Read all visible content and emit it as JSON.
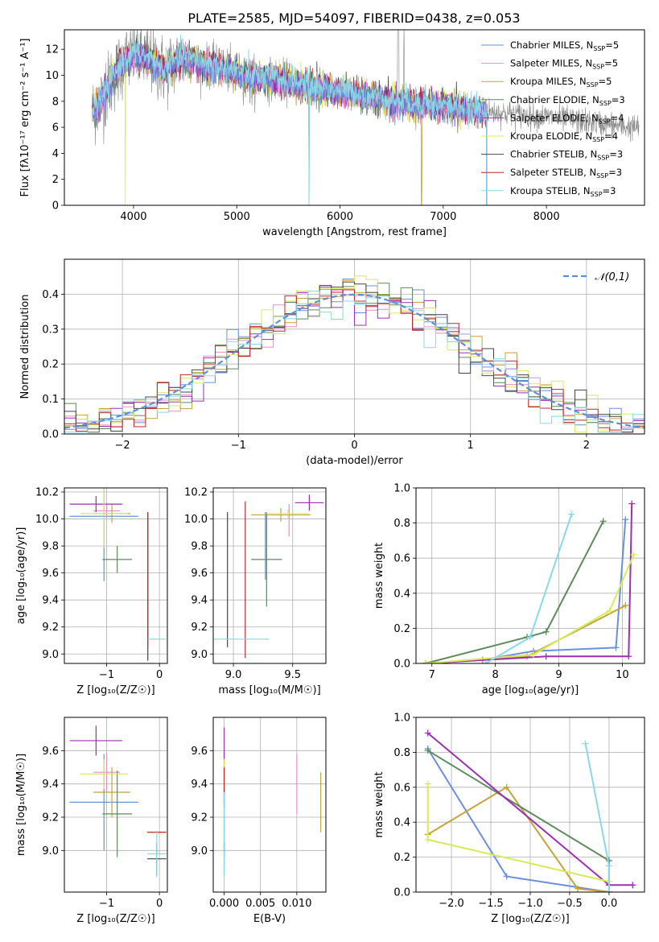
{
  "figure_title": "PLATE=2585, MJD=54097, FIBERID=0438, z=0.053",
  "model_colors": [
    "#6a8fdc",
    "#e58fc8",
    "#c2a43a",
    "#5e8a5e",
    "#9b30b0",
    "#d7ea5a",
    "#444444",
    "#c0282c",
    "#8ad8e6"
  ],
  "legend_models": [
    "Chabrier MILES",
    "Salpeter MILES",
    "Kroupa MILES",
    "Chabrier ELODIE",
    "Salpeter ELODIE",
    "Kroupa ELODIE",
    "Chabrier STELIB",
    "Salpeter STELIB",
    "Kroupa STELIB"
  ],
  "legend_nssp": [
    "5",
    "5",
    "5",
    "3",
    "4",
    "4",
    "3",
    "3",
    "3"
  ],
  "legend_nssp_prefix": "N",
  "legend_nssp_sub": "SSP",
  "hist_legend": "𝒩(0,1)",
  "chart_data": [
    {
      "id": "spectrum",
      "type": "line",
      "xlabel": "wavelength [Angstrom, rest frame]",
      "ylabel": "Flux [fλ10⁻¹⁷ erg cm⁻² s⁻¹ A⁻¹]",
      "xlim": [
        3330,
        8950
      ],
      "ylim": [
        0,
        13.5
      ],
      "xticks": [
        4000,
        5000,
        6000,
        7000,
        8000
      ],
      "yticks": [
        0,
        2,
        4,
        6,
        8,
        10,
        12
      ],
      "data_wavelength_range": [
        3600,
        8900
      ],
      "model_wavelength_range": [
        3600,
        7420
      ],
      "continuum_samples": {
        "x": [
          3600,
          3700,
          3800,
          3900,
          4000,
          4100,
          4200,
          4300,
          4400,
          4500,
          4700,
          4900,
          5100,
          5300,
          5500,
          5700,
          5900,
          6100,
          6300,
          6500,
          6700,
          6900,
          7100,
          7300,
          7420,
          7600,
          7800,
          8000,
          8200,
          8400,
          8600,
          8800,
          8900
        ],
        "y": [
          7.2,
          8.2,
          9.8,
          11.0,
          11.6,
          11.4,
          11.0,
          10.3,
          11.0,
          11.3,
          10.8,
          10.4,
          9.9,
          9.7,
          9.5,
          9.1,
          8.9,
          8.6,
          8.3,
          8.0,
          7.8,
          7.7,
          7.5,
          7.3,
          7.2,
          7.1,
          6.9,
          6.8,
          6.6,
          6.4,
          6.2,
          6.0,
          6.0
        ]
      },
      "model_dropouts": [
        3920,
        5700,
        6790,
        7420
      ]
    },
    {
      "id": "residual_histogram",
      "type": "bar",
      "xlabel": "(data-model)/error",
      "ylabel": "Normed distribution",
      "xlim": [
        -2.5,
        2.5
      ],
      "ylim": [
        0,
        0.5
      ],
      "xticks": [
        -2,
        -1,
        0,
        1,
        2
      ],
      "yticks": [
        0.0,
        0.1,
        0.2,
        0.3,
        0.4
      ],
      "bin_width": 0.1,
      "gaussian_mean": 0,
      "gaussian_sigma": 1
    },
    {
      "id": "age_vs_Z",
      "type": "scatter",
      "xlabel": "Z [log₁₀(Z/Z☉)]",
      "ylabel": "age  [log₁₀(age/yr)]",
      "xlim": [
        -1.8,
        0.15
      ],
      "ylim": [
        8.93,
        10.23
      ],
      "xticks": [
        -1,
        0
      ],
      "yticks": [
        9.0,
        9.2,
        9.4,
        9.6,
        9.8,
        10.0,
        10.2
      ],
      "points": [
        {
          "model": 0,
          "x": -1.05,
          "xerr": 0.65,
          "y": 10.02,
          "yerr": 0.48
        },
        {
          "model": 1,
          "x": -1.0,
          "xerr": 0.25,
          "y": 10.06,
          "yerr": 0.05
        },
        {
          "model": 2,
          "x": -0.9,
          "xerr": 0.35,
          "y": 10.04,
          "yerr": 0.07
        },
        {
          "model": 3,
          "x": -0.8,
          "xerr": 0.28,
          "y": 9.7,
          "yerr": 0.1
        },
        {
          "model": 4,
          "x": -1.2,
          "xerr": 0.5,
          "y": 10.11,
          "yerr": 0.06
        },
        {
          "model": 5,
          "x": -1.05,
          "xerr": 0.45,
          "y": 10.04,
          "yerr": 0.25
        },
        {
          "model": 6,
          "x": -0.22,
          "xerr": 0.0,
          "y": 9.5,
          "yerr": 0.55
        },
        {
          "model": 7,
          "x": -0.22,
          "xerr": 0.0,
          "y": 9.55,
          "yerr": 0.5
        },
        {
          "model": 8,
          "x": -0.05,
          "xerr": 0.17,
          "y": 9.11,
          "yerr": 0.0
        }
      ]
    },
    {
      "id": "age_vs_mass",
      "type": "scatter",
      "xlabel": "mass [log₁₀(M/M☉)]",
      "ylabel": "",
      "xlim": [
        8.83,
        9.78
      ],
      "ylim": [
        8.93,
        10.23
      ],
      "xticks": [
        9.0,
        9.5
      ],
      "yticks": [
        9.0,
        9.2,
        9.4,
        9.6,
        9.8,
        10.0,
        10.2
      ],
      "points": [
        {
          "model": 0,
          "x": 9.27,
          "xerr": 0.0,
          "y": 9.8,
          "yerr": 0.25
        },
        {
          "model": 1,
          "x": 9.47,
          "xerr": 0.0,
          "y": 9.99,
          "yerr": 0.12
        },
        {
          "model": 2,
          "x": 9.4,
          "xerr": 0.25,
          "y": 10.03,
          "yerr": 0.05
        },
        {
          "model": 3,
          "x": 9.28,
          "xerr": 0.13,
          "y": 9.7,
          "yerr": 0.35
        },
        {
          "model": 4,
          "x": 9.64,
          "xerr": 0.12,
          "y": 10.12,
          "yerr": 0.06
        },
        {
          "model": 5,
          "x": 9.46,
          "xerr": 0.18,
          "y": 10.04,
          "yerr": 0.03
        },
        {
          "model": 6,
          "x": 8.95,
          "xerr": 0.0,
          "y": 9.55,
          "yerr": 0.5
        },
        {
          "model": 7,
          "x": 9.1,
          "xerr": 0.0,
          "y": 9.55,
          "yerr": 0.58
        },
        {
          "model": 8,
          "x": 9.0,
          "xerr": 0.3,
          "y": 9.11,
          "yerr": 0.0
        }
      ]
    },
    {
      "id": "mass_weight_vs_age",
      "type": "line",
      "xlabel": "age  [log₁₀(age/yr)]",
      "ylabel": "mass weight",
      "xlim": [
        6.75,
        10.35
      ],
      "ylim": [
        0,
        1.0
      ],
      "xticks": [
        7,
        8,
        9,
        10
      ],
      "yticks": [
        0.0,
        0.2,
        0.4,
        0.6,
        0.8,
        1.0
      ],
      "series": [
        {
          "model": 0,
          "x": [
            6.9,
            7.8,
            8.6,
            9.9,
            10.05
          ],
          "y": [
            0.0,
            0.02,
            0.07,
            0.09,
            0.82
          ]
        },
        {
          "model": 2,
          "x": [
            6.9,
            8.5,
            10.05
          ],
          "y": [
            0.0,
            0.04,
            0.33
          ]
        },
        {
          "model": 3,
          "x": [
            6.9,
            8.5,
            8.8,
            9.7
          ],
          "y": [
            0.0,
            0.15,
            0.18,
            0.81
          ]
        },
        {
          "model": 4,
          "x": [
            6.9,
            8.8,
            10.1,
            10.15
          ],
          "y": [
            0.0,
            0.04,
            0.04,
            0.91
          ]
        },
        {
          "model": 5,
          "x": [
            6.9,
            8.6,
            9.8,
            10.18
          ],
          "y": [
            0.0,
            0.05,
            0.3,
            0.62
          ]
        },
        {
          "model": 8,
          "x": [
            7.85,
            8.55,
            9.2
          ],
          "y": [
            0.0,
            0.15,
            0.85
          ]
        }
      ]
    },
    {
      "id": "mass_vs_Z",
      "type": "scatter",
      "xlabel": "Z [log₁₀(Z/Z☉)]",
      "ylabel": "mass [log₁₀(M/M☉)]",
      "xlim": [
        -1.8,
        0.15
      ],
      "ylim": [
        8.75,
        9.8
      ],
      "xticks": [
        -1,
        0
      ],
      "yticks": [
        9.0,
        9.2,
        9.4,
        9.6
      ],
      "points": [
        {
          "model": 0,
          "x": -1.05,
          "xerr": 0.65,
          "y": 9.29,
          "yerr": 0.29
        },
        {
          "model": 1,
          "x": -1.0,
          "xerr": 0.25,
          "y": 9.47,
          "yerr": 0.12
        },
        {
          "model": 2,
          "x": -0.9,
          "xerr": 0.35,
          "y": 9.35,
          "yerr": 0.15
        },
        {
          "model": 3,
          "x": -0.8,
          "xerr": 0.28,
          "y": 9.22,
          "yerr": 0.26
        },
        {
          "model": 4,
          "x": -1.2,
          "xerr": 0.5,
          "y": 9.66,
          "yerr": 0.09
        },
        {
          "model": 5,
          "x": -1.05,
          "xerr": 0.45,
          "y": 9.46,
          "yerr": 0.09
        },
        {
          "model": 6,
          "x": -0.05,
          "xerr": 0.18,
          "y": 8.95,
          "yerr": 0.1
        },
        {
          "model": 7,
          "x": -0.05,
          "xerr": 0.18,
          "y": 9.11,
          "yerr": 0.0
        },
        {
          "model": 8,
          "x": -0.05,
          "xerr": 0.18,
          "y": 8.98,
          "yerr": 0.14
        }
      ]
    },
    {
      "id": "mass_vs_ebv",
      "type": "scatter",
      "xlabel": "E(B-V)",
      "ylabel": "",
      "xlim": [
        -0.0015,
        0.014
      ],
      "ylim": [
        8.75,
        9.8
      ],
      "xticks": [
        0.0,
        0.005,
        0.01
      ],
      "xtick_labels": [
        "0.000",
        "0.005",
        "0.010"
      ],
      "yticks": [
        9.0,
        9.2,
        9.4,
        9.6
      ],
      "points": [
        {
          "model": 0,
          "x": 0.0,
          "xerr": 0.0,
          "y": 9.29,
          "yerr": 0.29
        },
        {
          "model": 1,
          "x": 0.01,
          "xerr": 0.0,
          "y": 9.4,
          "yerr": 0.18
        },
        {
          "model": 2,
          "x": 0.0133,
          "xerr": 0.0,
          "y": 9.29,
          "yerr": 0.18
        },
        {
          "model": 3,
          "x": 0.0,
          "xerr": 0.0,
          "y": 9.22,
          "yerr": 0.26
        },
        {
          "model": 4,
          "x": 0.0,
          "xerr": 0.0,
          "y": 9.62,
          "yerr": 0.12
        },
        {
          "model": 5,
          "x": 0.0,
          "xerr": 0.0,
          "y": 9.46,
          "yerr": 0.09
        },
        {
          "model": 6,
          "x": 0.0,
          "xerr": 0.0,
          "y": 8.95,
          "yerr": 0.1
        },
        {
          "model": 7,
          "x": 0.0,
          "xerr": 0.0,
          "y": 9.38,
          "yerr": 0.12
        },
        {
          "model": 8,
          "x": 0.0,
          "xerr": 0.0,
          "y": 9.1,
          "yerr": 0.25
        }
      ]
    },
    {
      "id": "mass_weight_vs_Z",
      "type": "line",
      "xlabel": "Z [log₁₀(Z/Z☉)]",
      "ylabel": "mass weight",
      "xlim": [
        -2.45,
        0.45
      ],
      "ylim": [
        0,
        1.0
      ],
      "xticks": [
        -2.0,
        -1.5,
        -1.0,
        -0.5,
        0.0
      ],
      "xtick_labels": [
        "−2.0",
        "−1.5",
        "−1.0",
        "−0.5",
        "0.0"
      ],
      "yticks": [
        0.0,
        0.2,
        0.4,
        0.6,
        0.8,
        1.0
      ],
      "series": [
        {
          "model": 0,
          "x": [
            -2.3,
            -1.3,
            0.0
          ],
          "y": [
            0.82,
            0.09,
            0.0
          ]
        },
        {
          "model": 2,
          "x": [
            -2.3,
            -1.3,
            -0.4,
            0.0
          ],
          "y": [
            0.33,
            0.6,
            0.02,
            0.0
          ]
        },
        {
          "model": 3,
          "x": [
            -2.3,
            0.0,
            0.0
          ],
          "y": [
            0.81,
            0.18,
            0.0
          ]
        },
        {
          "model": 4,
          "x": [
            -2.3,
            0.0,
            0.0,
            0.3
          ],
          "y": [
            0.91,
            0.04,
            0.04,
            0.04
          ]
        },
        {
          "model": 5,
          "x": [
            -2.3,
            -2.3,
            0.0
          ],
          "y": [
            0.62,
            0.3,
            0.06
          ]
        },
        {
          "model": 8,
          "x": [
            -0.3,
            0.0,
            0.0
          ],
          "y": [
            0.85,
            0.15,
            0.0
          ]
        }
      ]
    }
  ]
}
